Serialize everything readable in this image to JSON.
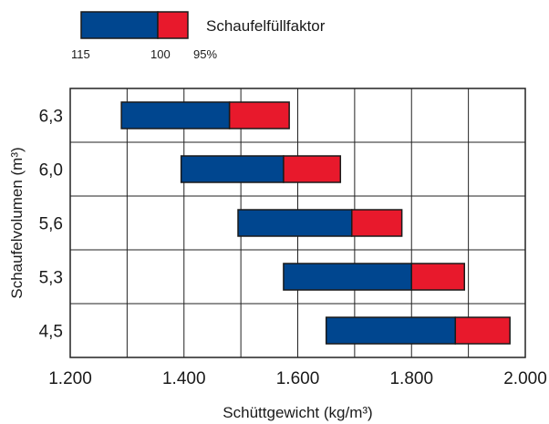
{
  "chart_data": {
    "type": "bar",
    "orientation": "horizontal",
    "categories": [
      "6,3",
      "6,0",
      "5,6",
      "5,3",
      "4,5"
    ],
    "ranges": [
      {
        "category": "6,3",
        "start_115": 1290,
        "end_100": 1480,
        "end_95": 1585
      },
      {
        "category": "6,0",
        "start_115": 1395,
        "end_100": 1575,
        "end_95": 1675
      },
      {
        "category": "5,6",
        "start_115": 1495,
        "end_100": 1695,
        "end_95": 1783
      },
      {
        "category": "5,3",
        "start_115": 1575,
        "end_100": 1800,
        "end_95": 1893
      },
      {
        "category": "4,5",
        "start_115": 1650,
        "end_100": 1877,
        "end_95": 1973
      }
    ],
    "series": [
      {
        "name": "115–100",
        "color": "#00468f"
      },
      {
        "name": "100–95",
        "color": "#e8192c"
      }
    ],
    "xlabel": "Schüttgewicht (kg/m³)",
    "ylabel": "Schaufelvolumen (m³)",
    "xlim": [
      1200,
      2000
    ],
    "xticks": [
      1200,
      1400,
      1600,
      1800,
      2000
    ],
    "xtick_labels": [
      "1.200",
      "1.400",
      "1.600",
      "1.800",
      "2.000"
    ],
    "minor_grid_step": 100,
    "grid": true,
    "legend": {
      "title": "Schaufelfüllfaktor",
      "placement": "top-left",
      "tick_labels": [
        "115",
        "100",
        "95%"
      ],
      "colors": [
        "#00468f",
        "#e8192c"
      ]
    }
  }
}
